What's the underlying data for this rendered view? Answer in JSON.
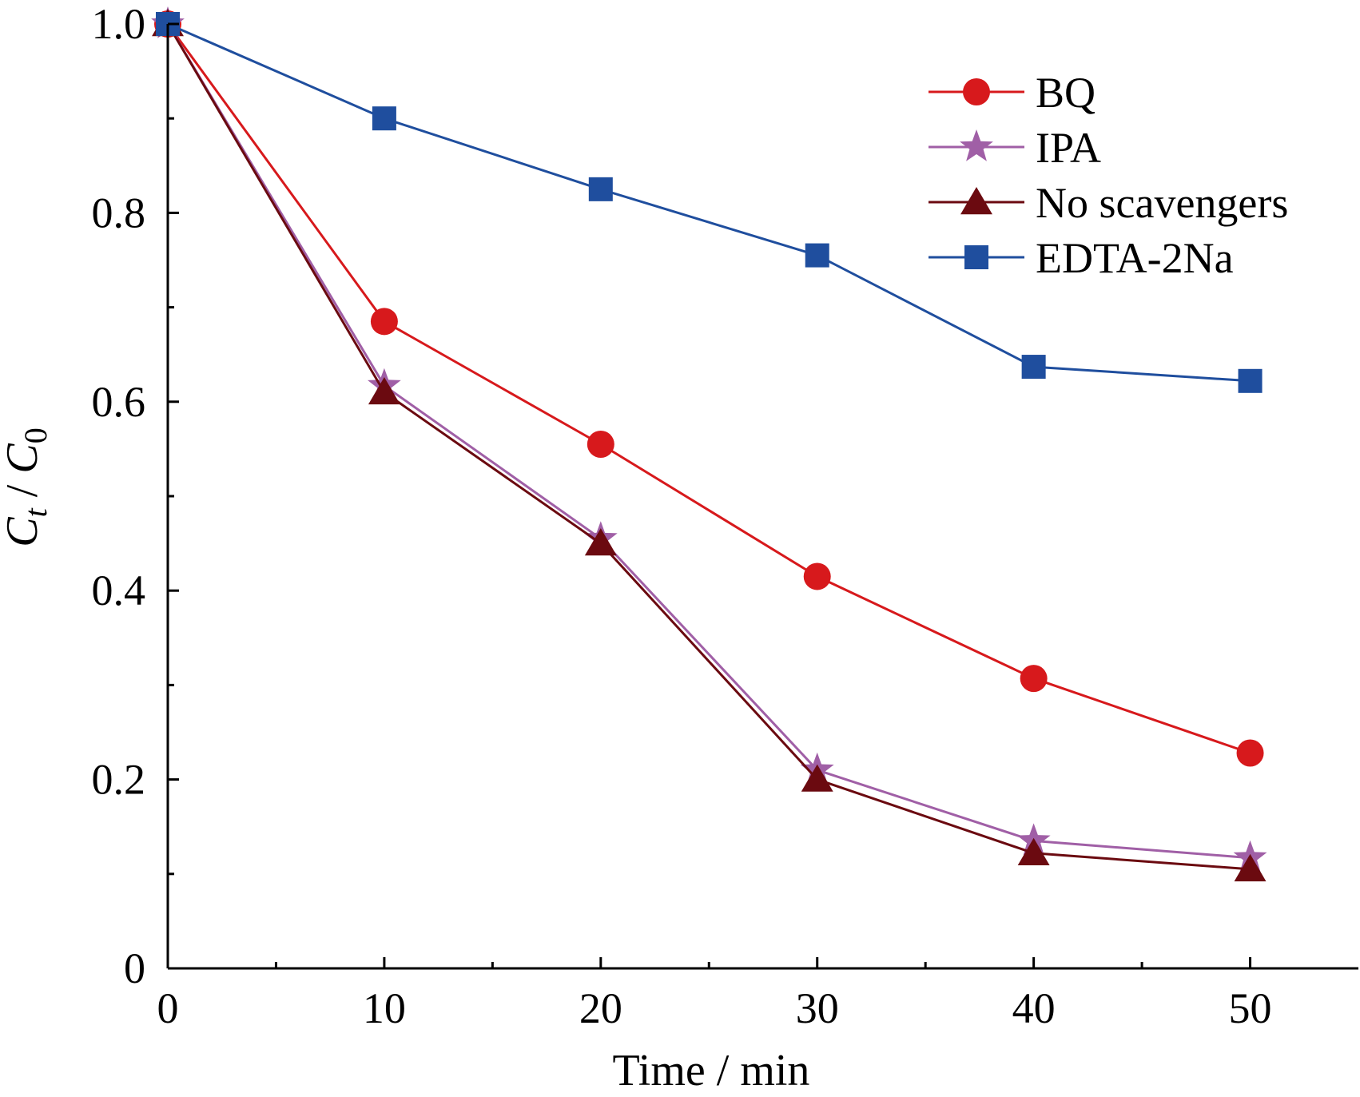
{
  "chart_data": {
    "type": "line",
    "title": "",
    "xlabel": "Time / min",
    "ylabel": {
      "c_t": "C",
      "t_sub": "t",
      "slash": " / ",
      "c_0": "C",
      "zero_sub": "0"
    },
    "xlim": [
      0,
      55
    ],
    "ylim": [
      0,
      1.0
    ],
    "xticks": [
      0,
      10,
      20,
      30,
      40,
      50
    ],
    "xtick_labels": [
      "0",
      "10",
      "20",
      "30",
      "40",
      "50"
    ],
    "yticks": [
      0,
      0.2,
      0.4,
      0.6,
      0.8,
      1.0
    ],
    "ytick_labels": [
      "0",
      "0.2",
      "0.4",
      "0.6",
      "0.8",
      "1.0"
    ],
    "x_minor_ticks": [
      5,
      15,
      25,
      35,
      45
    ],
    "y_minor_ticks": [
      0.1,
      0.3,
      0.5,
      0.7,
      0.9
    ],
    "legend_position": "top-right",
    "grid": false,
    "x": [
      0,
      10,
      20,
      30,
      40,
      50
    ],
    "series": [
      {
        "name": "BQ",
        "marker": "circle",
        "color": "#d7191c",
        "values": [
          1.0,
          0.685,
          0.555,
          0.415,
          0.307,
          0.228
        ]
      },
      {
        "name": "IPA",
        "marker": "star",
        "color": "#a05fa6",
        "values": [
          1.0,
          0.617,
          0.455,
          0.21,
          0.135,
          0.117
        ]
      },
      {
        "name": "No scavengers",
        "marker": "triangle",
        "color": "#6b0a10",
        "values": [
          1.0,
          0.61,
          0.45,
          0.2,
          0.122,
          0.105
        ]
      },
      {
        "name": "EDTA-2Na",
        "marker": "square",
        "color": "#1f4e9e",
        "values": [
          1.0,
          0.9,
          0.825,
          0.755,
          0.637,
          0.622
        ]
      }
    ]
  }
}
